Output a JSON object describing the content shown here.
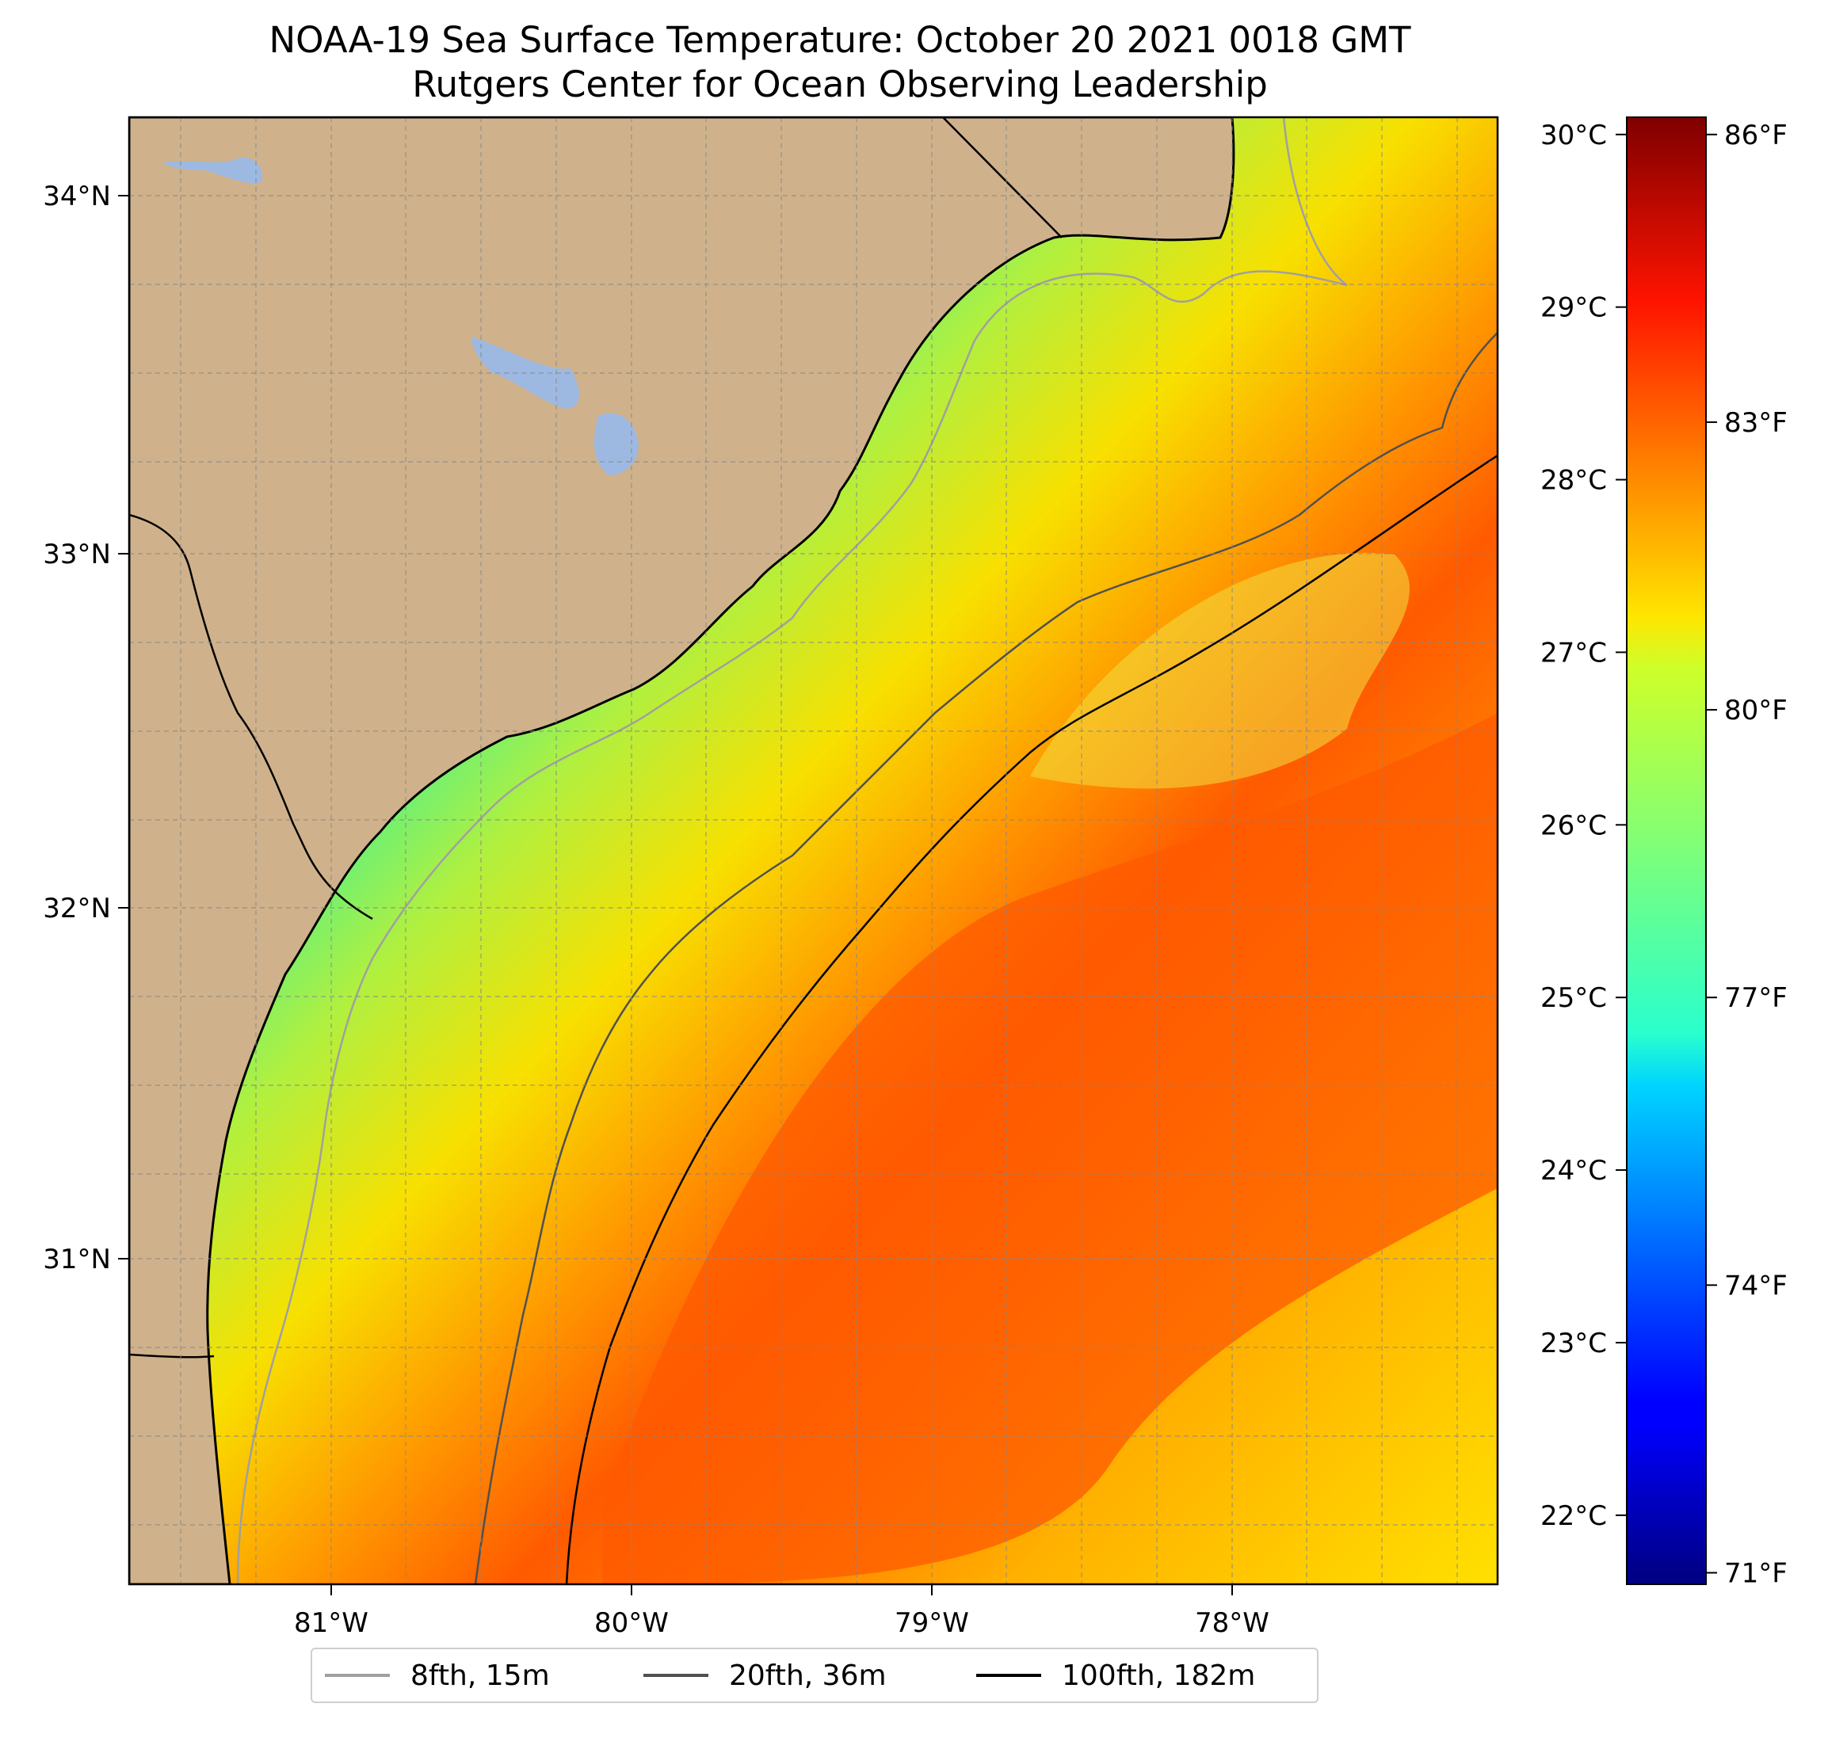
{
  "title": "NOAA-19 Sea Surface Temperature: October 20 2021 0018 GMT",
  "subtitle": "Rutgers Center for Ocean Observing Leadership",
  "map": {
    "lon_range": [
      -81.68,
      -77.12
    ],
    "lat_range": [
      30.08,
      34.22
    ],
    "lon_ticks": [
      "81°W",
      "80°W",
      "79°W",
      "78°W"
    ],
    "lat_ticks": [
      "34°N",
      "33°N",
      "32°N",
      "31°N"
    ],
    "gridlines": true,
    "land_color": "#cfb28b",
    "lake_color": "#9db9e2",
    "missing_data_color": "#ffffff"
  },
  "colorbar": {
    "colormap": "jet",
    "range_c": [
      21.6,
      30.1
    ],
    "celsius_labels": [
      "30°C",
      "29°C",
      "28°C",
      "27°C",
      "26°C",
      "25°C",
      "24°C",
      "23°C",
      "22°C"
    ],
    "fahrenheit_labels": [
      "86°F",
      "83°F",
      "80°F",
      "77°F",
      "74°F",
      "71°F"
    ]
  },
  "legend": {
    "placement": "bottom-center",
    "items": [
      {
        "label": "8fth, 15m",
        "color": "#a0a0a0"
      },
      {
        "label": "20fth, 36m",
        "color": "#505050"
      },
      {
        "label": "100fth, 182m",
        "color": "#000000"
      }
    ]
  }
}
